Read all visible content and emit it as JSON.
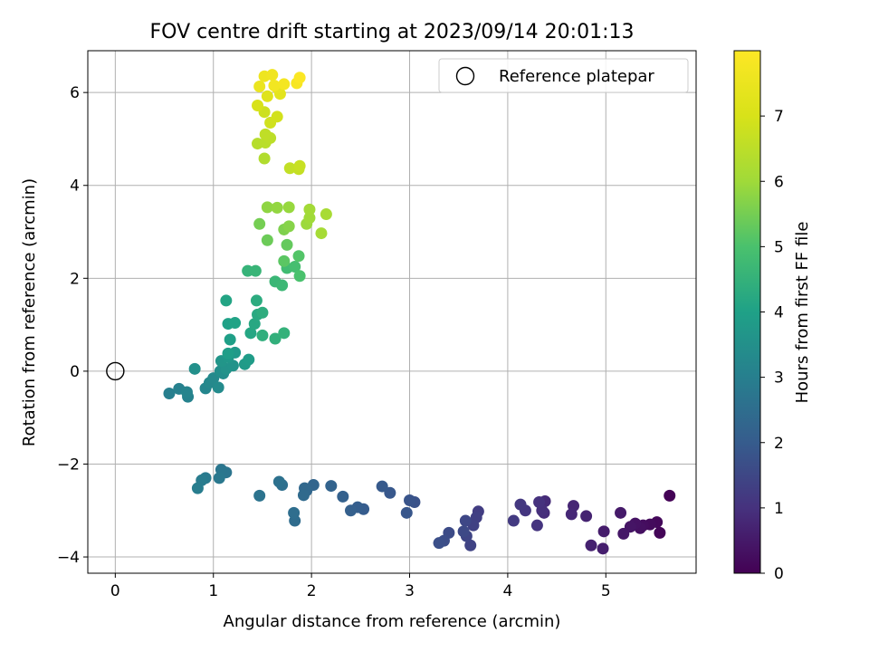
{
  "chart_data": {
    "type": "scatter",
    "title": "FOV centre drift starting at 2023/09/14 20:01:13",
    "xlabel": "Angular distance from reference (arcmin)",
    "ylabel": "Rotation from reference (arcmin)",
    "xlim": [
      -0.28,
      5.92
    ],
    "ylim": [
      -4.35,
      6.9
    ],
    "xticks": [
      "0",
      "1",
      "2",
      "3",
      "4",
      "5"
    ],
    "yticks": [
      "−4",
      "−2",
      "0",
      "2",
      "4",
      "6"
    ],
    "grid": true,
    "legend": {
      "position": "top-right",
      "entries": [
        "Reference platepar"
      ]
    },
    "reference_point": {
      "x": 0,
      "y": 0,
      "label": "Reference platepar"
    },
    "colorbar": {
      "label": "Hours from first FF file",
      "range": [
        0,
        8
      ],
      "ticks": [
        "0",
        "1",
        "2",
        "3",
        "4",
        "5",
        "6",
        "7"
      ],
      "colormap": "viridis"
    },
    "points": [
      [
        5.65,
        -2.68,
        0.05
      ],
      [
        5.55,
        -3.48,
        0.1
      ],
      [
        5.52,
        -3.25,
        0.15
      ],
      [
        5.45,
        -3.3,
        0.2
      ],
      [
        5.38,
        -3.32,
        0.25
      ],
      [
        5.35,
        -3.38,
        0.3
      ],
      [
        5.3,
        -3.28,
        0.35
      ],
      [
        5.25,
        -3.35,
        0.4
      ],
      [
        5.18,
        -3.5,
        0.45
      ],
      [
        5.15,
        -3.05,
        0.5
      ],
      [
        4.98,
        -3.45,
        0.55
      ],
      [
        4.97,
        -3.82,
        0.6
      ],
      [
        4.85,
        -3.75,
        0.65
      ],
      [
        4.8,
        -3.12,
        0.7
      ],
      [
        4.67,
        -2.9,
        0.75
      ],
      [
        4.65,
        -3.08,
        0.8
      ],
      [
        4.38,
        -2.8,
        0.85
      ],
      [
        4.37,
        -3.05,
        0.9
      ],
      [
        4.35,
        -3.0,
        0.95
      ],
      [
        4.32,
        -2.82,
        1.0
      ],
      [
        4.3,
        -3.32,
        1.05
      ],
      [
        4.18,
        -3.0,
        1.1
      ],
      [
        4.13,
        -2.87,
        1.15
      ],
      [
        4.06,
        -3.22,
        1.2
      ],
      [
        3.7,
        -3.02,
        1.25
      ],
      [
        3.68,
        -3.15,
        1.3
      ],
      [
        3.65,
        -3.32,
        1.35
      ],
      [
        3.62,
        -3.75,
        1.4
      ],
      [
        3.58,
        -3.55,
        1.45
      ],
      [
        3.57,
        -3.22,
        1.5
      ],
      [
        3.55,
        -3.45,
        1.55
      ],
      [
        3.4,
        -3.48,
        1.6
      ],
      [
        3.35,
        -3.65,
        1.65
      ],
      [
        3.3,
        -3.7,
        1.7
      ],
      [
        3.05,
        -2.82,
        1.75
      ],
      [
        3.0,
        -2.78,
        1.8
      ],
      [
        2.97,
        -3.05,
        1.85
      ],
      [
        2.8,
        -2.62,
        1.9
      ],
      [
        2.72,
        -2.48,
        1.95
      ],
      [
        2.53,
        -2.97,
        2.0
      ],
      [
        2.47,
        -2.93,
        2.05
      ],
      [
        2.4,
        -3.0,
        2.1
      ],
      [
        2.32,
        -2.7,
        2.15
      ],
      [
        2.2,
        -2.47,
        2.2
      ],
      [
        2.02,
        -2.45,
        2.25
      ],
      [
        1.95,
        -2.57,
        2.3
      ],
      [
        1.93,
        -2.52,
        2.35
      ],
      [
        1.92,
        -2.67,
        2.4
      ],
      [
        1.83,
        -3.22,
        2.45
      ],
      [
        1.82,
        -3.05,
        2.5
      ],
      [
        1.7,
        -2.45,
        2.55
      ],
      [
        1.67,
        -2.38,
        2.6
      ],
      [
        1.47,
        -2.68,
        2.65
      ],
      [
        1.13,
        -2.18,
        2.7
      ],
      [
        1.08,
        -2.12,
        2.75
      ],
      [
        1.06,
        -2.3,
        2.8
      ],
      [
        0.92,
        -2.3,
        2.85
      ],
      [
        0.88,
        -2.35,
        2.9
      ],
      [
        0.84,
        -2.52,
        2.95
      ],
      [
        0.55,
        -0.48,
        3.0
      ],
      [
        0.65,
        -0.38,
        3.05
      ],
      [
        0.74,
        -0.55,
        3.1
      ],
      [
        0.73,
        -0.45,
        3.15
      ],
      [
        0.92,
        -0.37,
        3.2
      ],
      [
        0.96,
        -0.25,
        3.25
      ],
      [
        1.0,
        -0.15,
        3.3
      ],
      [
        1.05,
        -0.35,
        3.35
      ],
      [
        1.1,
        -0.05,
        3.4
      ],
      [
        1.07,
        0.0,
        3.45
      ],
      [
        0.81,
        0.05,
        3.5
      ],
      [
        1.13,
        0.05,
        3.55
      ],
      [
        1.2,
        0.12,
        3.6
      ],
      [
        1.08,
        0.22,
        3.65
      ],
      [
        1.15,
        0.3,
        3.7
      ],
      [
        1.22,
        0.4,
        3.75
      ],
      [
        1.32,
        0.15,
        3.8
      ],
      [
        1.36,
        0.25,
        3.85
      ],
      [
        1.15,
        0.38,
        3.9
      ],
      [
        1.17,
        0.68,
        3.95
      ],
      [
        1.15,
        1.02,
        4.0
      ],
      [
        1.22,
        1.04,
        4.05
      ],
      [
        1.13,
        1.52,
        4.1
      ],
      [
        1.38,
        0.82,
        4.15
      ],
      [
        1.42,
        1.02,
        4.2
      ],
      [
        1.45,
        1.22,
        4.25
      ],
      [
        1.44,
        1.52,
        4.3
      ],
      [
        1.5,
        1.26,
        4.35
      ],
      [
        1.5,
        0.77,
        4.4
      ],
      [
        1.63,
        0.7,
        4.45
      ],
      [
        1.72,
        0.82,
        4.5
      ],
      [
        1.35,
        2.16,
        4.55
      ],
      [
        1.43,
        2.16,
        4.6
      ],
      [
        1.63,
        1.93,
        4.65
      ],
      [
        1.7,
        1.85,
        4.7
      ],
      [
        1.75,
        2.22,
        4.8
      ],
      [
        1.83,
        2.25,
        4.9
      ],
      [
        1.88,
        2.05,
        5.0
      ],
      [
        1.87,
        2.48,
        5.1
      ],
      [
        1.72,
        2.37,
        5.2
      ],
      [
        1.75,
        2.72,
        5.3
      ],
      [
        1.55,
        2.82,
        5.4
      ],
      [
        1.47,
        3.17,
        5.5
      ],
      [
        1.72,
        3.05,
        5.6
      ],
      [
        1.77,
        3.12,
        5.7
      ],
      [
        1.55,
        3.53,
        5.8
      ],
      [
        1.65,
        3.52,
        5.85
      ],
      [
        1.77,
        3.53,
        5.9
      ],
      [
        1.95,
        3.17,
        5.95
      ],
      [
        1.98,
        3.3,
        6.0
      ],
      [
        1.98,
        3.48,
        6.05
      ],
      [
        2.1,
        2.97,
        6.1
      ],
      [
        2.15,
        3.38,
        6.15
      ],
      [
        1.52,
        4.58,
        6.3
      ],
      [
        1.45,
        4.9,
        6.4
      ],
      [
        1.53,
        4.92,
        6.45
      ],
      [
        1.58,
        5.02,
        6.5
      ],
      [
        1.53,
        5.1,
        6.55
      ],
      [
        1.78,
        4.37,
        6.6
      ],
      [
        1.87,
        4.35,
        6.65
      ],
      [
        1.88,
        4.42,
        6.7
      ],
      [
        1.52,
        5.58,
        6.8
      ],
      [
        1.58,
        5.35,
        6.85
      ],
      [
        1.65,
        5.48,
        6.9
      ],
      [
        1.45,
        5.72,
        7.0
      ],
      [
        1.55,
        5.92,
        7.2
      ],
      [
        1.68,
        5.97,
        7.3
      ],
      [
        1.65,
        6.1,
        7.4
      ],
      [
        1.47,
        6.13,
        7.5
      ],
      [
        1.52,
        6.35,
        7.6
      ],
      [
        1.6,
        6.38,
        7.65
      ],
      [
        1.62,
        6.15,
        7.7
      ],
      [
        1.72,
        6.18,
        7.75
      ],
      [
        1.85,
        6.2,
        7.85
      ],
      [
        1.88,
        6.32,
        7.95
      ]
    ]
  }
}
